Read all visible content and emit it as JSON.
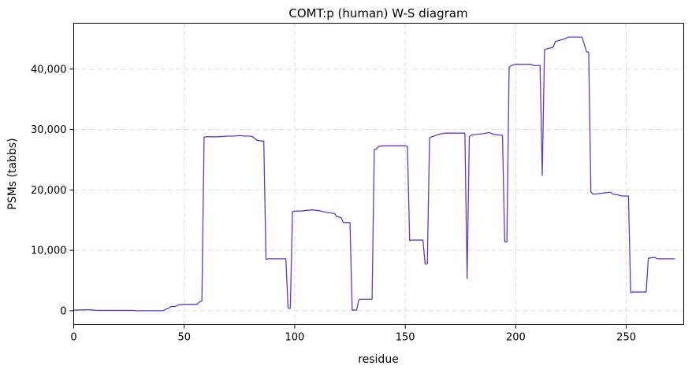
{
  "chart_data": {
    "type": "line",
    "title": "COMT:p (human) W-S diagram",
    "xlabel": "residue",
    "ylabel": "PSMs (tabbs)",
    "xlim": [
      0,
      276
    ],
    "ylim": [
      -2300,
      47600
    ],
    "x_ticks": [
      0,
      50,
      100,
      150,
      200,
      250
    ],
    "x_tick_labels": [
      "0",
      "50",
      "100",
      "150",
      "200",
      "250"
    ],
    "y_ticks": [
      0,
      10000,
      20000,
      30000,
      40000
    ],
    "y_tick_labels": [
      "0",
      "10,000",
      "20,000",
      "30,000",
      "40,000"
    ],
    "grid": true,
    "line_color": "#6236d6",
    "series": [
      {
        "x": [
          0,
          1,
          5,
          8,
          9,
          10,
          12,
          15,
          20,
          25,
          27,
          28,
          35,
          40,
          41,
          42,
          43,
          44,
          45,
          46,
          47,
          48,
          50,
          55,
          56,
          57,
          58,
          59,
          60,
          62,
          65,
          70,
          72,
          75,
          78,
          80,
          81,
          83,
          85,
          86,
          87,
          88,
          90,
          93,
          95,
          96,
          97,
          98,
          99,
          100,
          103,
          105,
          108,
          110,
          112,
          114,
          116,
          118,
          119,
          120,
          121,
          122,
          124,
          125,
          126,
          127,
          128,
          129,
          130,
          132,
          134,
          135,
          136,
          137,
          138,
          140,
          145,
          150,
          151,
          152,
          153,
          155,
          157,
          158,
          159,
          160,
          161,
          162,
          163,
          165,
          168,
          170,
          172,
          175,
          177,
          178,
          179,
          180,
          182,
          185,
          188,
          190,
          192,
          193,
          194,
          195,
          196,
          197,
          198,
          200,
          202,
          205,
          207,
          208,
          210,
          211,
          212,
          213,
          215,
          216,
          217,
          218,
          220,
          222,
          224,
          226,
          228,
          230,
          232,
          233,
          234,
          235,
          236,
          238,
          240,
          242,
          243,
          244,
          246,
          248,
          250,
          251,
          252,
          253,
          255,
          258,
          259,
          260,
          262,
          263,
          264,
          266,
          269,
          272
        ],
        "y": [
          100,
          100,
          150,
          150,
          100,
          50,
          50,
          50,
          50,
          50,
          50,
          0,
          0,
          0,
          100,
          300,
          400,
          700,
          700,
          700,
          900,
          1000,
          1050,
          1050,
          1100,
          1500,
          1600,
          28700,
          28800,
          28800,
          28800,
          28900,
          28900,
          29000,
          28900,
          28900,
          28800,
          28200,
          28100,
          28100,
          8500,
          8600,
          8600,
          8600,
          8600,
          8600,
          400,
          400,
          16400,
          16500,
          16500,
          16600,
          16700,
          16600,
          16500,
          16300,
          16200,
          16100,
          15600,
          15500,
          15400,
          14600,
          14600,
          14600,
          100,
          100,
          100,
          1800,
          1900,
          1900,
          1900,
          1900,
          26700,
          26800,
          27200,
          27300,
          27300,
          27300,
          27200,
          11600,
          11700,
          11700,
          11700,
          11700,
          7700,
          7800,
          28600,
          28800,
          28900,
          29200,
          29400,
          29400,
          29400,
          29400,
          29400,
          5300,
          28800,
          29100,
          29200,
          29300,
          29500,
          29200,
          29100,
          29100,
          29000,
          11400,
          11400,
          40300,
          40600,
          40800,
          40800,
          40800,
          40800,
          40600,
          40600,
          40600,
          22400,
          43200,
          43500,
          43500,
          43700,
          44600,
          44800,
          45000,
          45300,
          45300,
          45300,
          45300,
          42900,
          42800,
          19700,
          19300,
          19300,
          19400,
          19500,
          19600,
          19600,
          19300,
          19200,
          19000,
          19000,
          19000,
          3000,
          3100,
          3100,
          3100,
          3100,
          8700,
          8800,
          8800,
          8600,
          8600,
          8600,
          8600
        ]
      }
    ]
  }
}
